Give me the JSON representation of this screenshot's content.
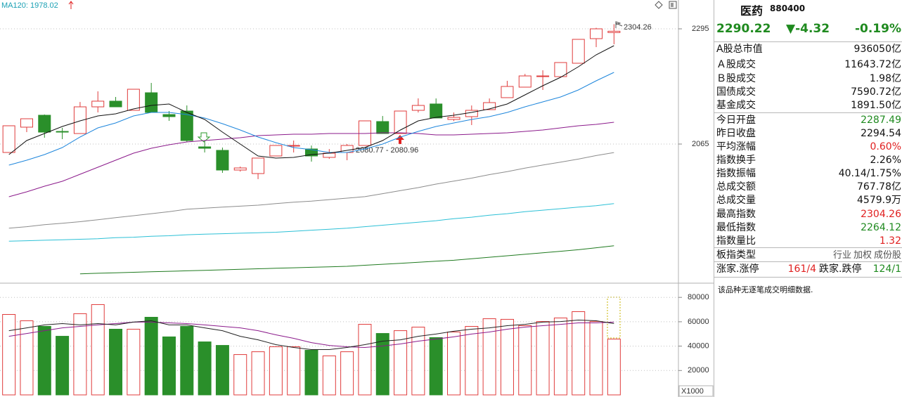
{
  "chart_data": [
    {
      "type": "candlestick",
      "indicator_label": "MA120: 1978.02",
      "open": [
        2048.2,
        2098.7,
        2122.5,
        2090.2,
        2086.0,
        2139.3,
        2150.6,
        2132.3,
        2167.4,
        2123.9,
        2130.9,
        2059.4,
        2052.4,
        2013.1,
        2006.1,
        2041.2,
        2060.8,
        2055.2,
        2038.4,
        2048.2,
        2062.2,
        2109.9,
        2086.0,
        2132.3,
        2145.0,
        2114.1,
        2119.7,
        2133.7,
        2157.6,
        2178.6,
        2200.0,
        2199.6,
        2226.3,
        2275.4,
        2287.49
      ],
      "high": [
        2101.5,
        2115.5,
        2124.0,
        2097.3,
        2149.0,
        2170.2,
        2159.0,
        2174.4,
        2187.0,
        2130.9,
        2142.1,
        2072.0,
        2058.0,
        2020.0,
        2037.0,
        2062.2,
        2072.0,
        2062.0,
        2055.0,
        2065.0,
        2111.3,
        2121.0,
        2130.9,
        2156.2,
        2156.0,
        2128.0,
        2142.0,
        2156.0,
        2191.2,
        2205.0,
        2212.3,
        2227.7,
        2274.0,
        2297.0,
        2304.26
      ],
      "low": [
        2048.2,
        2088.8,
        2077.6,
        2074.8,
        2086.0,
        2128.1,
        2139.3,
        2132.3,
        2128.1,
        2111.3,
        2069.2,
        2048.2,
        2007.5,
        2010.0,
        1995.0,
        2041.2,
        2048.2,
        2030.0,
        2035.6,
        2032.7,
        2062.2,
        2086.0,
        2086.0,
        2128.0,
        2117.0,
        2111.0,
        2102.9,
        2133.7,
        2157.6,
        2178.6,
        2173.0,
        2199.6,
        2226.3,
        2258.5,
        2264.12
      ],
      "close": [
        2101.5,
        2115.5,
        2088.8,
        2088.8,
        2139.3,
        2150.6,
        2139.3,
        2174.4,
        2128.1,
        2119.7,
        2072.0,
        2056.6,
        2013.1,
        2017.3,
        2037.0,
        2062.2,
        2062.2,
        2041.2,
        2046.8,
        2062.2,
        2111.3,
        2086.0,
        2130.9,
        2142.1,
        2117.0,
        2118.3,
        2132.3,
        2147.7,
        2180.0,
        2201.0,
        2201.0,
        2227.7,
        2274.0,
        2295.0,
        2290.22
      ],
      "up_color": "#e03c3c",
      "down_color": "#2a8f2a",
      "series": [
        {
          "color": "#8c8c8c",
          "values": [
            1897,
            1900,
            1904,
            1907,
            1910,
            1914,
            1918,
            1922,
            1926,
            1930,
            1935,
            1937,
            1939,
            1941,
            1943,
            1946,
            1949,
            1951,
            1954,
            1957,
            1960,
            1966,
            1972,
            1978,
            1985,
            1991,
            1997,
            2004,
            2010,
            2017,
            2023,
            2029,
            2035,
            2042,
            2048
          ]
        },
        {
          "color": "#2cc0d6",
          "values": [
            1871,
            1872,
            1873,
            1874,
            1875,
            1876,
            1878,
            1879,
            1881,
            1882,
            1884,
            1885,
            1886,
            1887,
            1888,
            1889,
            1891,
            1893,
            1895,
            1897,
            1900,
            1903,
            1906,
            1909,
            1912,
            1916,
            1919,
            1923,
            1926,
            1930,
            1933,
            1936,
            1939,
            1942,
            1946
          ]
        },
        {
          "color": "#1f7a1f",
          "values": [
            null,
            null,
            null,
            null,
            1806,
            1807,
            1808,
            1809,
            1810,
            1811,
            1812,
            1813,
            1814,
            1815,
            1816,
            1817,
            1818,
            1819,
            1820,
            1821,
            1823,
            1825,
            1827,
            1829,
            1831,
            1833,
            1836,
            1839,
            1842,
            1845,
            1848,
            1851,
            1854,
            1858,
            1862
          ]
        },
        {
          "color": "#8b1a8b",
          "values": [
            1959.8,
            1969.6,
            1980.9,
            1990.7,
            2004.7,
            2018.7,
            2032.8,
            2046.8,
            2056.6,
            2063.6,
            2069.2,
            2072.0,
            2074.8,
            2077.6,
            2081.8,
            2083.2,
            2084.6,
            2084.6,
            2086.0,
            2086.0,
            2086.0,
            2087.4,
            2087.4,
            2086.0,
            2083.2,
            2083.2,
            2084.6,
            2086.0,
            2087.4,
            2090.2,
            2093.1,
            2097.3,
            2101.5,
            2104.3,
            2108.5
          ]
        },
        {
          "color": "#1e86dc",
          "values": [
            2022.9,
            2032.8,
            2044.0,
            2058.0,
            2079.0,
            2097.3,
            2107.1,
            2121.1,
            2128.1,
            2128.1,
            2123.9,
            2116.9,
            2105.7,
            2093.1,
            2079.0,
            2067.8,
            2058.0,
            2053.8,
            2048.2,
            2048.2,
            2055.2,
            2065.0,
            2079.0,
            2090.2,
            2100.1,
            2107.1,
            2114.1,
            2119.7,
            2128.1,
            2139.3,
            2149.2,
            2159.0,
            2173.0,
            2191.2,
            2208.1
          ]
        },
        {
          "color": "#111111",
          "values": [
            2044.0,
            2072.0,
            2086.0,
            2100.1,
            2111.3,
            2121.1,
            2125.3,
            2135.1,
            2142.1,
            2144.9,
            2128.1,
            2114.1,
            2088.8,
            2065.0,
            2041.2,
            2037.0,
            2038.4,
            2044.0,
            2046.8,
            2052.4,
            2058.0,
            2072.0,
            2093.1,
            2111.3,
            2118.3,
            2122.5,
            2128.1,
            2135.1,
            2144.9,
            2163.2,
            2181.4,
            2198.2,
            2219.3,
            2243.1,
            2261.3
          ]
        }
      ],
      "annotations": [
        "2304.26",
        "2080.77 - 2080.96"
      ],
      "ylim": [
        1791.5,
        2331.5
      ],
      "yticks": [
        2295,
        2065
      ],
      "grid": true
    },
    {
      "type": "bar",
      "values": [
        66000,
        60800,
        56200,
        48100,
        66600,
        74100,
        53900,
        53900,
        63700,
        47600,
        56200,
        43500,
        40600,
        33100,
        35400,
        39500,
        39500,
        36600,
        32000,
        35400,
        57900,
        50400,
        52700,
        55600,
        47000,
        51600,
        56200,
        62500,
        62000,
        56800,
        60200,
        63100,
        68300,
        60200,
        45800
      ],
      "series": [
        {
          "color": "#8b1a8b",
          "values": [
            48100,
            50400,
            52700,
            55000,
            56200,
            57400,
            58500,
            59700,
            59700,
            59100,
            58500,
            57400,
            56200,
            55000,
            52700,
            49300,
            46400,
            42900,
            40600,
            39500,
            38900,
            40100,
            41800,
            44100,
            45800,
            47600,
            49900,
            51600,
            53900,
            55600,
            56800,
            57900,
            59100,
            59100,
            59700
          ]
        },
        {
          "color": "#222222",
          "values": [
            52700,
            55000,
            57400,
            58500,
            57400,
            58500,
            57400,
            59700,
            60800,
            57400,
            57400,
            55000,
            52700,
            48100,
            45200,
            41200,
            38900,
            37200,
            37200,
            38900,
            41200,
            44100,
            45200,
            48100,
            49900,
            52200,
            53900,
            55000,
            56800,
            57900,
            59700,
            60200,
            61400,
            60800,
            58500
          ]
        }
      ],
      "unit_label": "X1000",
      "ylim": [
        0,
        90500
      ],
      "yticks": [
        80000,
        60000,
        40000,
        20000
      ],
      "grid": true
    }
  ],
  "info": {
    "name": "医药",
    "code": "880400",
    "price": "2290.22",
    "change": "▼-4.32",
    "change_pct": "-0.19%",
    "rows": [
      {
        "label": "A股总市值",
        "value": "936050亿"
      },
      {
        "label": "Ａ股成交",
        "value": "11643.72亿"
      },
      {
        "label": "Ｂ股成交",
        "value": "1.98亿"
      },
      {
        "label": "国债成交",
        "value": "7590.72亿"
      },
      {
        "label": "基金成交",
        "value": "1891.50亿"
      },
      {
        "label": "今日开盘",
        "value": "2287.49"
      },
      {
        "label": "昨日收盘",
        "value": "2294.54"
      },
      {
        "label": "平均涨幅",
        "value": "0.60%"
      },
      {
        "label": "指数换手",
        "value": "2.26%"
      },
      {
        "label": "指数振幅",
        "value": "40.14/1.75%"
      },
      {
        "label": "总成交额",
        "value": "767.78亿"
      },
      {
        "label": "总成交量",
        "value": "4579.9万"
      },
      {
        "label": "最高指数",
        "value": "2304.26"
      },
      {
        "label": "最低指数",
        "value": "2264.12"
      },
      {
        "label": "指数量比",
        "value": "1.32"
      }
    ],
    "board_type": {
      "label": "板指类型",
      "options": [
        "行业",
        "加权",
        "成份股"
      ]
    },
    "breadth": {
      "up_label": "涨家.涨停",
      "up_value": "161/4",
      "down_label": "跌家.跌停",
      "down_value": "124/1"
    },
    "message": "该品种无逐笔成交明细数据."
  }
}
